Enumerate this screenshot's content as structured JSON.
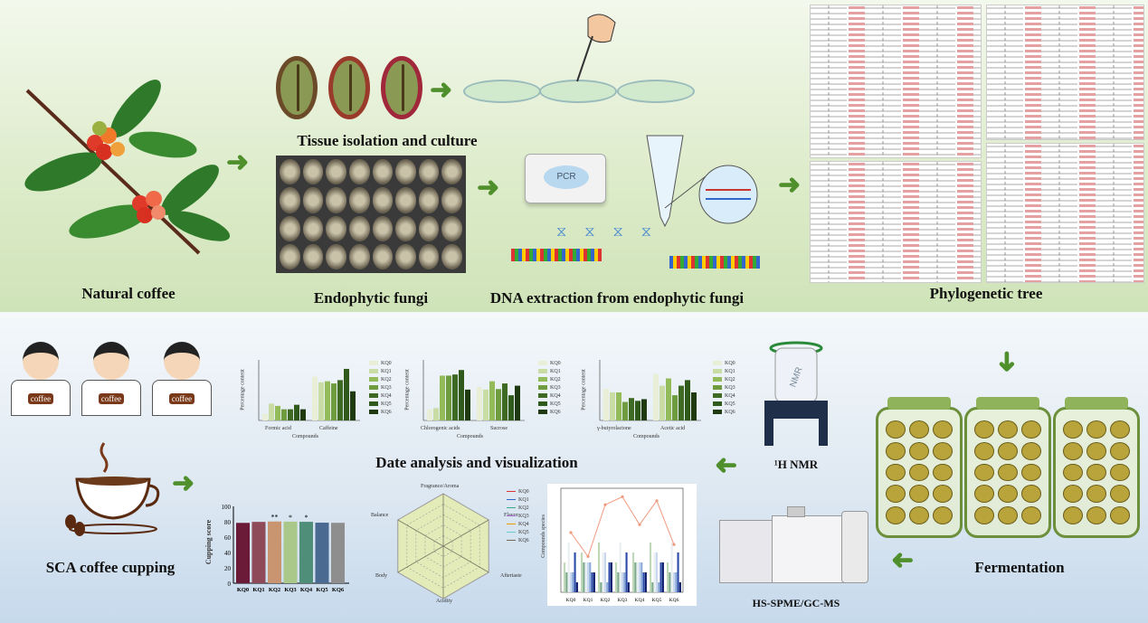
{
  "top_section": {
    "natural_coffee": "Natural coffee",
    "tissue_isolation": "Tissue isolation and culture",
    "endophytic_fungi": "Endophytic fungi",
    "dna_extraction": "DNA extraction from endophytic fungi",
    "pcr_label": "PCR",
    "phylogenetic_tree": "Phylogenetic tree"
  },
  "bottom_section": {
    "sca_cupping": "SCA coffee cupping",
    "shirt_text": "coffee",
    "data_analysis": "Date analysis and visualization",
    "nmr": "¹H NMR",
    "nmr_magnet_text": "NMR",
    "fermentation": "Fermentation",
    "gcms": "HS-SPME/GC-MS"
  },
  "mini_charts": {
    "samples": [
      "KQ0",
      "KQ1",
      "KQ2",
      "KQ3",
      "KQ4",
      "KQ5",
      "KQ6"
    ],
    "colors": [
      "#e8efd6",
      "#c9dca4",
      "#94bb5a",
      "#6f9c3e",
      "#3f6a24",
      "#2f5a1c",
      "#1f3a10"
    ],
    "nmr_chart_1": {
      "ylabel": "Percentage content",
      "xlabel": "Compounds",
      "categories": [
        "Formic acid",
        "Caffeine"
      ]
    },
    "nmr_chart_2": {
      "ylabel": "Percentage content",
      "xlabel": "Compounds",
      "categories": [
        "Chlorogenic acids",
        "Sucrose"
      ]
    },
    "nmr_chart_3": {
      "ylabel": "Percentage content",
      "xlabel": "Compounds",
      "categories": [
        "γ-butyrolactone",
        "Acetic acid"
      ]
    },
    "cupping": {
      "ylabel": "Cupping score",
      "yticks": [
        "0",
        "20",
        "40",
        "60",
        "80",
        "100"
      ],
      "values": [
        78.5,
        79.8,
        80.3,
        80.1,
        79.9,
        78.8,
        78.6
      ],
      "significance": [
        "",
        "",
        "**",
        "*",
        "*",
        "",
        ""
      ],
      "colors": [
        "#6b1a38",
        "#8f4a5a",
        "#c99470",
        "#a9c88a",
        "#4f8f7a",
        "#4a6a92",
        "#8e8e8e"
      ]
    },
    "radar": {
      "axes": [
        "Fragrance/Aroma",
        "Flavor",
        "Aftertaste",
        "Acidity",
        "Body",
        "Balance"
      ]
    },
    "combo": {
      "ylabel": "Compounds species"
    }
  }
}
